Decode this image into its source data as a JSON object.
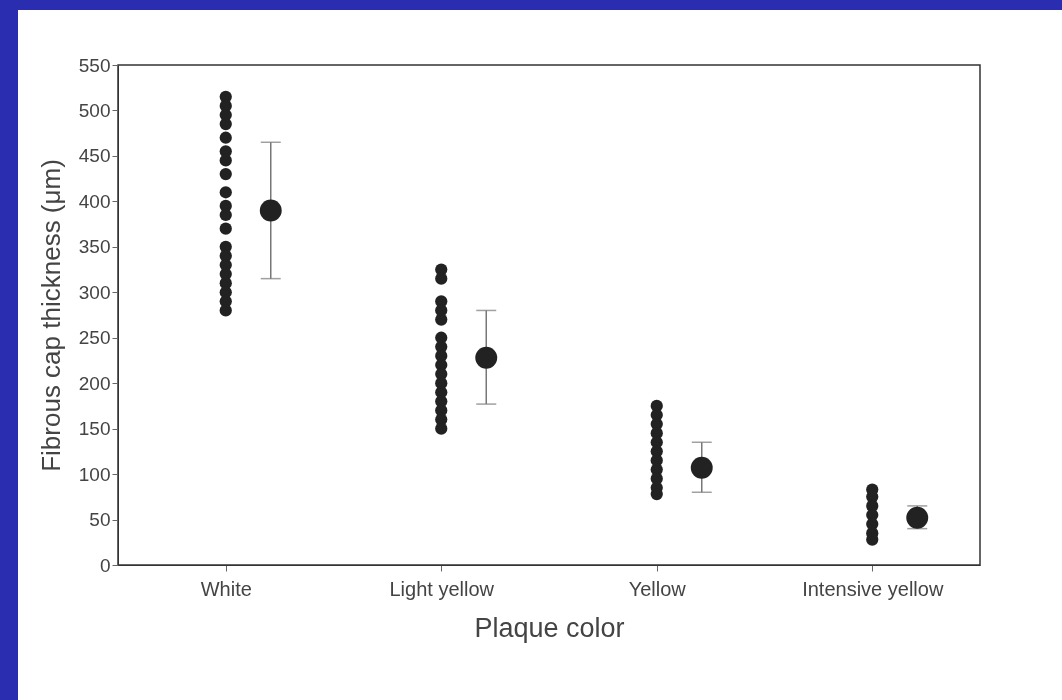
{
  "chart_data": {
    "type": "scatter",
    "xlabel": "Plaque color",
    "ylabel": "Fibrous cap thickness (μm)",
    "categories": [
      "White",
      "Light yellow",
      "Yellow",
      "Intensive yellow"
    ],
    "ylim": [
      0,
      550
    ],
    "yticks": [
      0,
      50,
      100,
      150,
      200,
      250,
      300,
      350,
      400,
      450,
      500,
      550
    ],
    "grid": false,
    "legend": false,
    "marker": "circle",
    "series": [
      {
        "color": "#222222",
        "x": [
          "White",
          "White",
          "White",
          "White",
          "White",
          "White",
          "White",
          "White",
          "White",
          "White",
          "White",
          "White",
          "White",
          "White",
          "White",
          "White",
          "White",
          "White",
          "White",
          "White",
          "Light yellow",
          "Light yellow",
          "Light yellow",
          "Light yellow",
          "Light yellow",
          "Light yellow",
          "Light yellow",
          "Light yellow",
          "Light yellow",
          "Light yellow",
          "Light yellow",
          "Light yellow",
          "Light yellow",
          "Light yellow",
          "Light yellow",
          "Light yellow",
          "Yellow",
          "Yellow",
          "Yellow",
          "Yellow",
          "Yellow",
          "Yellow",
          "Yellow",
          "Yellow",
          "Yellow",
          "Yellow",
          "Yellow",
          "Intensive yellow",
          "Intensive yellow",
          "Intensive yellow",
          "Intensive yellow",
          "Intensive yellow",
          "Intensive yellow",
          "Intensive yellow"
        ],
        "values": [
          515,
          505,
          495,
          485,
          470,
          455,
          445,
          430,
          410,
          395,
          385,
          370,
          350,
          340,
          330,
          320,
          310,
          300,
          290,
          280,
          325,
          315,
          290,
          280,
          270,
          250,
          240,
          230,
          220,
          210,
          200,
          190,
          180,
          170,
          160,
          150,
          175,
          165,
          155,
          145,
          135,
          125,
          115,
          105,
          95,
          85,
          78,
          83,
          75,
          65,
          55,
          45,
          35,
          28
        ]
      },
      {
        "color": "#222222",
        "values": [
          390,
          228,
          107,
          52
        ],
        "errors": [
          [
            315,
            465
          ],
          [
            177,
            280
          ],
          [
            80,
            135
          ],
          [
            40,
            65
          ]
        ]
      }
    ]
  }
}
